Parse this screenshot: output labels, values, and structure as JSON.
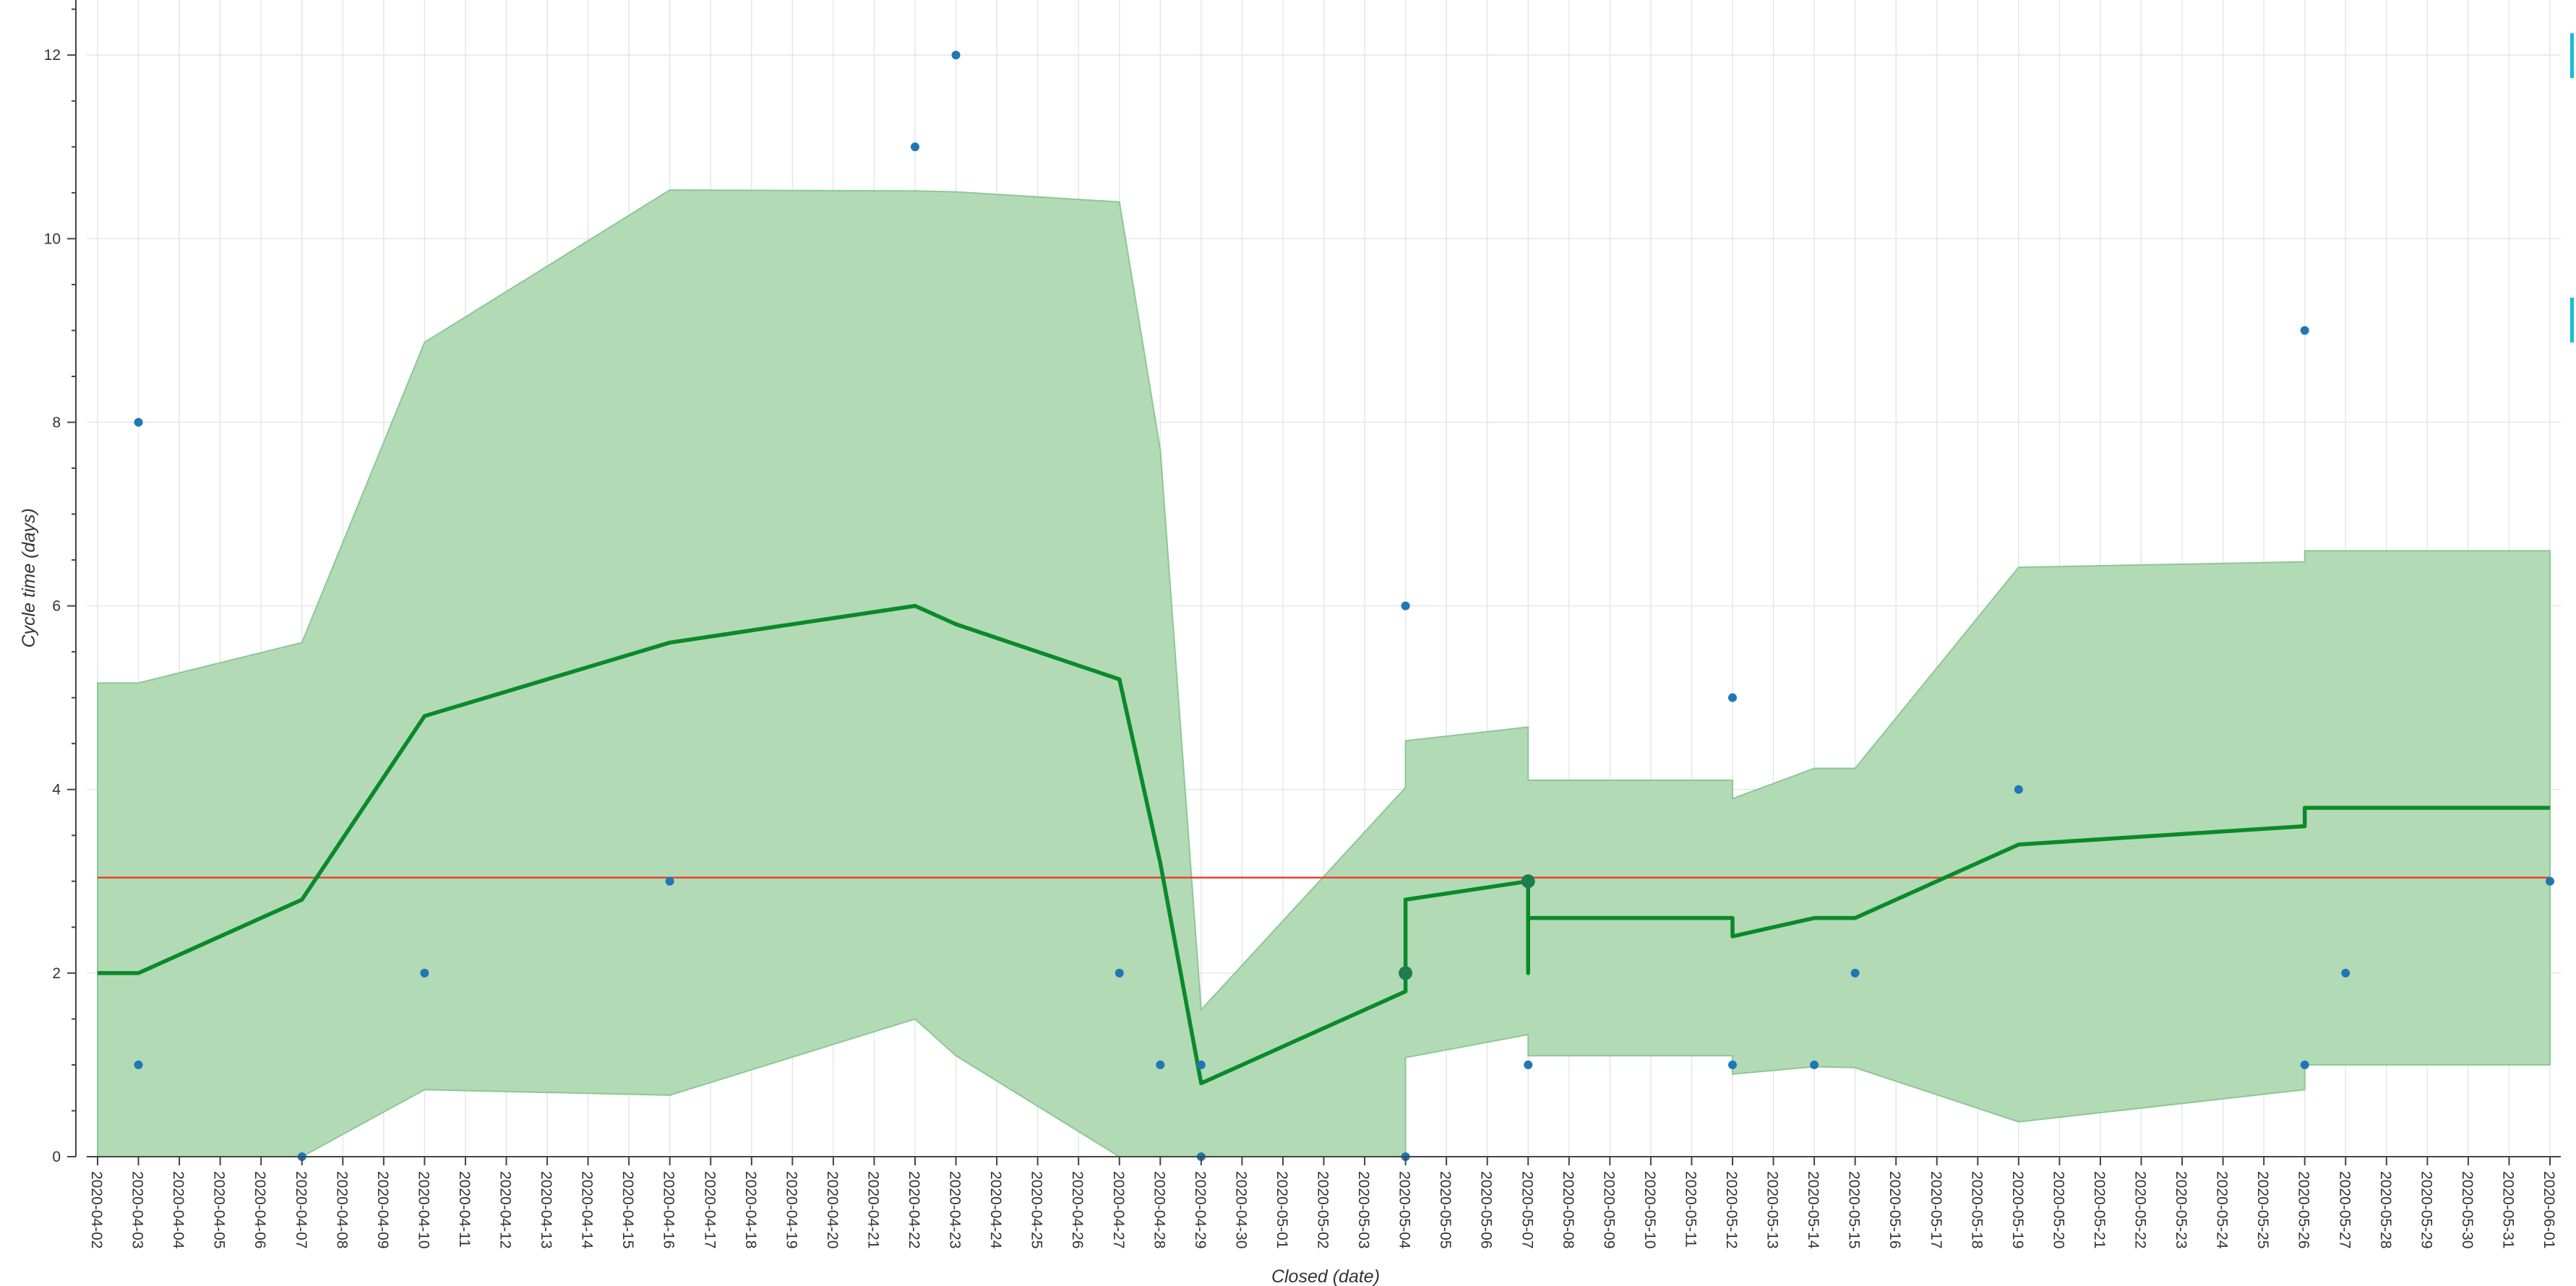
{
  "chart_data": {
    "type": "scatter",
    "xlabel": "Closed (date)",
    "ylabel": "Cycle time (days)",
    "x_ticks": [
      "2020-04-02",
      "2020-04-03",
      "2020-04-04",
      "2020-04-05",
      "2020-04-06",
      "2020-04-07",
      "2020-04-08",
      "2020-04-09",
      "2020-04-10",
      "2020-04-11",
      "2020-04-12",
      "2020-04-13",
      "2020-04-14",
      "2020-04-15",
      "2020-04-16",
      "2020-04-17",
      "2020-04-18",
      "2020-04-19",
      "2020-04-20",
      "2020-04-21",
      "2020-04-22",
      "2020-04-23",
      "2020-04-24",
      "2020-04-25",
      "2020-04-26",
      "2020-04-27",
      "2020-04-28",
      "2020-04-29",
      "2020-04-30",
      "2020-05-01",
      "2020-05-02",
      "2020-05-03",
      "2020-05-04",
      "2020-05-05",
      "2020-05-06",
      "2020-05-07",
      "2020-05-08",
      "2020-05-09",
      "2020-05-10",
      "2020-05-11",
      "2020-05-12",
      "2020-05-13",
      "2020-05-14",
      "2020-05-15",
      "2020-05-16",
      "2020-05-17",
      "2020-05-18",
      "2020-05-19",
      "2020-05-20",
      "2020-05-21",
      "2020-05-22",
      "2020-05-23",
      "2020-05-24",
      "2020-05-25",
      "2020-05-26",
      "2020-05-27",
      "2020-05-28",
      "2020-05-29",
      "2020-05-30",
      "2020-05-31",
      "2020-06-01"
    ],
    "y_ticks": [
      0,
      2,
      4,
      6,
      8,
      10,
      12
    ],
    "ylim": [
      0,
      12.6
    ],
    "grid": true,
    "colors": {
      "points": "#1f77b4",
      "moving_average": "#0a8a2a",
      "band_fill": "#b2dab5",
      "band_edge": "#8cc896",
      "mean_line": "#e8442e",
      "grid": "#e6e6e6",
      "accent": "#17becf"
    },
    "mean_line_value": 3.04,
    "points": [
      {
        "x": "2020-04-03",
        "y": 8
      },
      {
        "x": "2020-04-03",
        "y": 1
      },
      {
        "x": "2020-04-07",
        "y": 0
      },
      {
        "x": "2020-04-10",
        "y": 2
      },
      {
        "x": "2020-04-16",
        "y": 3
      },
      {
        "x": "2020-04-22",
        "y": 11
      },
      {
        "x": "2020-04-23",
        "y": 12
      },
      {
        "x": "2020-04-27",
        "y": 2
      },
      {
        "x": "2020-04-28",
        "y": 1
      },
      {
        "x": "2020-04-29",
        "y": 1
      },
      {
        "x": "2020-04-29",
        "y": 0
      },
      {
        "x": "2020-05-04",
        "y": 6
      },
      {
        "x": "2020-05-04",
        "y": 2,
        "large": true
      },
      {
        "x": "2020-05-04",
        "y": 0
      },
      {
        "x": "2020-05-07",
        "y": 3,
        "large": true
      },
      {
        "x": "2020-05-07",
        "y": 1
      },
      {
        "x": "2020-05-12",
        "y": 5
      },
      {
        "x": "2020-05-12",
        "y": 1
      },
      {
        "x": "2020-05-14",
        "y": 1
      },
      {
        "x": "2020-05-15",
        "y": 2
      },
      {
        "x": "2020-05-19",
        "y": 4
      },
      {
        "x": "2020-05-26",
        "y": 9
      },
      {
        "x": "2020-05-26",
        "y": 1
      },
      {
        "x": "2020-05-27",
        "y": 2
      },
      {
        "x": "2020-06-01",
        "y": 3
      }
    ],
    "moving_average": [
      [
        "2020-04-02",
        2.0
      ],
      [
        "2020-04-03",
        2.0
      ],
      [
        "2020-04-07",
        2.8
      ],
      [
        "2020-04-10",
        4.8
      ],
      [
        "2020-04-16",
        5.6
      ],
      [
        "2020-04-22",
        6.0
      ],
      [
        "2020-04-23",
        5.8
      ],
      [
        "2020-04-27",
        5.2
      ],
      [
        "2020-04-28",
        3.2
      ],
      [
        "2020-04-29",
        0.8
      ],
      [
        "2020-05-04",
        1.8
      ],
      [
        "2020-05-04",
        2.8
      ],
      [
        "2020-05-07",
        3.0
      ],
      [
        "2020-05-07",
        2.0
      ],
      [
        "2020-05-07",
        2.6
      ],
      [
        "2020-05-12",
        2.6
      ],
      [
        "2020-05-12",
        2.4
      ],
      [
        "2020-05-14",
        2.6
      ],
      [
        "2020-05-15",
        2.6
      ],
      [
        "2020-05-19",
        3.4
      ],
      [
        "2020-05-26",
        3.6
      ],
      [
        "2020-05-26",
        3.8
      ],
      [
        "2020-06-01",
        3.8
      ]
    ],
    "band_upper": [
      [
        "2020-04-02",
        5.16
      ],
      [
        "2020-04-03",
        5.16
      ],
      [
        "2020-04-07",
        5.6
      ],
      [
        "2020-04-10",
        8.87
      ],
      [
        "2020-04-16",
        10.53
      ],
      [
        "2020-04-22",
        10.52
      ],
      [
        "2020-04-23",
        10.51
      ],
      [
        "2020-04-27",
        10.4
      ],
      [
        "2020-04-28",
        7.7
      ],
      [
        "2020-04-29",
        1.6
      ],
      [
        "2020-05-04",
        4.02
      ],
      [
        "2020-05-04",
        4.53
      ],
      [
        "2020-05-07",
        4.68
      ],
      [
        "2020-05-07",
        4.1
      ],
      [
        "2020-05-12",
        4.1
      ],
      [
        "2020-05-12",
        3.9
      ],
      [
        "2020-05-14",
        4.23
      ],
      [
        "2020-05-15",
        4.23
      ],
      [
        "2020-05-19",
        6.42
      ],
      [
        "2020-05-26",
        6.48
      ],
      [
        "2020-05-26",
        6.6
      ],
      [
        "2020-06-01",
        6.6
      ]
    ],
    "band_lower": [
      [
        "2020-04-02",
        0
      ],
      [
        "2020-04-07",
        0
      ],
      [
        "2020-04-10",
        0.73
      ],
      [
        "2020-04-16",
        0.67
      ],
      [
        "2020-04-22",
        1.5
      ],
      [
        "2020-04-23",
        1.1
      ],
      [
        "2020-04-27",
        0
      ],
      [
        "2020-05-04",
        0
      ],
      [
        "2020-05-04",
        1.08
      ],
      [
        "2020-05-07",
        1.33
      ],
      [
        "2020-05-07",
        1.1
      ],
      [
        "2020-05-12",
        1.1
      ],
      [
        "2020-05-12",
        0.9
      ],
      [
        "2020-05-14",
        0.98
      ],
      [
        "2020-05-15",
        0.97
      ],
      [
        "2020-05-19",
        0.38
      ],
      [
        "2020-05-26",
        0.73
      ],
      [
        "2020-05-26",
        1.0
      ],
      [
        "2020-06-01",
        1.0
      ]
    ]
  }
}
